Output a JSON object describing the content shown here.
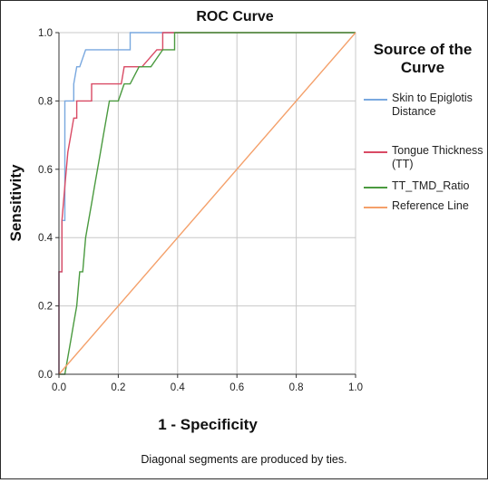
{
  "chart_data": {
    "type": "line",
    "title": "ROC Curve",
    "xlabel": "1 - Specificity",
    "ylabel": "Sensitivity",
    "xlim": [
      0.0,
      1.0
    ],
    "ylim": [
      0.0,
      1.0
    ],
    "x_ticks": [
      "0.0",
      "0.2",
      "0.4",
      "0.6",
      "0.8",
      "1.0"
    ],
    "y_ticks": [
      "0.0",
      "0.2",
      "0.4",
      "0.6",
      "0.8",
      "1.0"
    ],
    "grid": true,
    "legend_title": "Source of the Curve",
    "legend_position": "right",
    "footnote": "Diagonal segments are produced by ties.",
    "series": [
      {
        "name": "Skin to Epiglotis Distance",
        "color": "#79a8df",
        "x": [
          0.0,
          0.0,
          0.01,
          0.01,
          0.02,
          0.02,
          0.05,
          0.05,
          0.06,
          0.07,
          0.09,
          0.12,
          0.15,
          0.24,
          0.24,
          1.0
        ],
        "y": [
          0.0,
          0.3,
          0.3,
          0.45,
          0.45,
          0.8,
          0.8,
          0.85,
          0.9,
          0.9,
          0.95,
          0.95,
          0.95,
          0.95,
          1.0,
          1.0
        ]
      },
      {
        "name": "Tongue Thickness (TT)",
        "color": "#d94a64",
        "x": [
          0.0,
          0.0,
          0.01,
          0.01,
          0.02,
          0.03,
          0.04,
          0.05,
          0.06,
          0.06,
          0.07,
          0.11,
          0.11,
          0.14,
          0.21,
          0.22,
          0.23,
          0.28,
          0.33,
          0.35,
          0.35,
          1.0
        ],
        "y": [
          0.0,
          0.3,
          0.3,
          0.45,
          0.55,
          0.65,
          0.7,
          0.75,
          0.75,
          0.8,
          0.8,
          0.8,
          0.85,
          0.85,
          0.85,
          0.9,
          0.9,
          0.9,
          0.95,
          0.95,
          1.0,
          1.0
        ]
      },
      {
        "name": "TT_TMD_Ratio",
        "color": "#4a9a3f",
        "x": [
          0.0,
          0.02,
          0.03,
          0.04,
          0.05,
          0.06,
          0.07,
          0.08,
          0.09,
          0.1,
          0.11,
          0.12,
          0.14,
          0.15,
          0.16,
          0.17,
          0.18,
          0.2,
          0.22,
          0.24,
          0.27,
          0.31,
          0.35,
          0.38,
          0.39,
          0.39,
          1.0
        ],
        "y": [
          0.0,
          0.0,
          0.05,
          0.1,
          0.15,
          0.2,
          0.3,
          0.3,
          0.4,
          0.45,
          0.5,
          0.55,
          0.65,
          0.7,
          0.75,
          0.8,
          0.8,
          0.8,
          0.85,
          0.85,
          0.9,
          0.9,
          0.95,
          0.95,
          0.95,
          1.0,
          1.0
        ]
      },
      {
        "name": "Reference Line",
        "color": "#f4a06a",
        "x": [
          0.0,
          1.0
        ],
        "y": [
          0.0,
          1.0
        ]
      }
    ]
  }
}
